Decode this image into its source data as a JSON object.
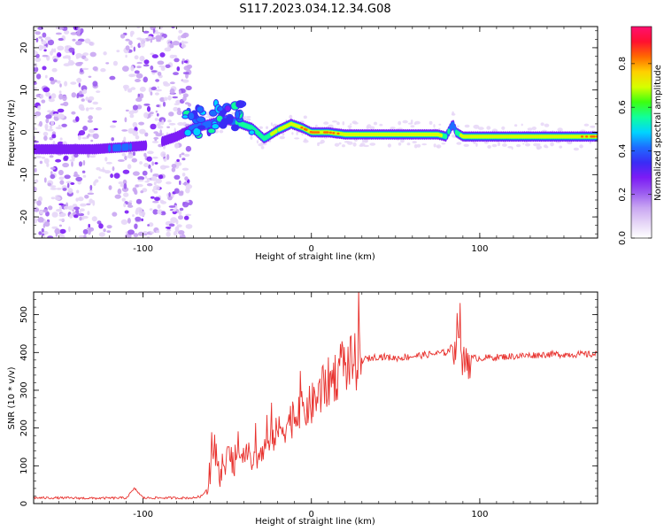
{
  "figure_title": "S117.2023.034.12.34.G08",
  "colors": {
    "snr_line": "#e8322e",
    "axis": "#000000",
    "colormap": [
      "#ffffff",
      "#e6d6f7",
      "#c9a6f2",
      "#9b5cf0",
      "#7c1cf5",
      "#3a2cf5",
      "#1e6cff",
      "#00d4ff",
      "#10ff9c",
      "#3cff10",
      "#d6ff00",
      "#ffd000",
      "#ff6a00",
      "#ff1030",
      "#ff1070"
    ]
  },
  "chart_data": [
    {
      "type": "heatmap",
      "title": "S117.2023.034.12.34.G08",
      "xlabel": "Height of straight line (km)",
      "ylabel": "Frequency (Hz)",
      "xlim": [
        -165,
        170
      ],
      "ylim": [
        -25,
        25
      ],
      "x_ticks": [
        "-100",
        "0",
        "100"
      ],
      "y_ticks": [
        "20",
        "10",
        "0",
        "-10",
        "-20"
      ],
      "colorbar": {
        "label": "Normalized spectral amplitude",
        "range": [
          0.0,
          0.97
        ],
        "ticks": [
          "0.0",
          "0.2",
          "0.4",
          "0.6",
          "0.8"
        ]
      },
      "ridge": {
        "x": [
          -150,
          -130,
          -110,
          -95,
          -80,
          -70,
          -60,
          -50,
          -42,
          -35,
          -28,
          -20,
          -12,
          -5,
          0,
          10,
          20,
          40,
          60,
          75,
          80,
          84,
          86,
          90,
          110,
          130,
          150,
          170
        ],
        "frequency": [
          -4,
          -4,
          -3.5,
          -3,
          -1,
          1,
          2,
          3,
          2,
          1,
          -1.5,
          0.5,
          2,
          1,
          0,
          0,
          -0.5,
          -0.5,
          -0.5,
          -0.5,
          -1,
          2,
          0,
          -1,
          -1,
          -1,
          -1,
          -1
        ],
        "amplitude": [
          0.35,
          0.4,
          0.45,
          0.25,
          0.35,
          0.45,
          0.45,
          0.45,
          0.6,
          0.7,
          0.65,
          0.75,
          0.8,
          0.85,
          0.9,
          0.9,
          0.8,
          0.8,
          0.8,
          0.85,
          0.6,
          0.5,
          0.6,
          0.8,
          0.8,
          0.8,
          0.8,
          0.9
        ]
      }
    },
    {
      "type": "line",
      "xlabel": "Height of straight line (km)",
      "ylabel": "SNR (10 * v/v)",
      "xlim": [
        -165,
        170
      ],
      "ylim": [
        0,
        560
      ],
      "x_ticks": [
        "-100",
        "0",
        "100"
      ],
      "y_ticks": [
        "0",
        "100",
        "200",
        "300",
        "400",
        "500"
      ],
      "series": [
        {
          "x": [
            -165,
            -150,
            -130,
            -110,
            -105,
            -100,
            -80,
            -70,
            -65,
            -62,
            -60,
            -58,
            -55,
            -50,
            -45,
            -40,
            -35,
            -30,
            -25,
            -20,
            -10,
            0,
            10,
            20,
            30,
            40,
            50,
            60,
            70,
            80,
            85,
            88,
            90,
            92,
            95,
            100,
            120,
            140,
            160,
            170
          ],
          "values": [
            15,
            15,
            14,
            15,
            40,
            15,
            15,
            15,
            20,
            40,
            80,
            150,
            60,
            120,
            100,
            150,
            110,
            130,
            160,
            190,
            230,
            260,
            320,
            365,
            380,
            390,
            385,
            390,
            395,
            400,
            420,
            500,
            350,
            390,
            385,
            385,
            390,
            395,
            395,
            395
          ]
        }
      ]
    }
  ]
}
